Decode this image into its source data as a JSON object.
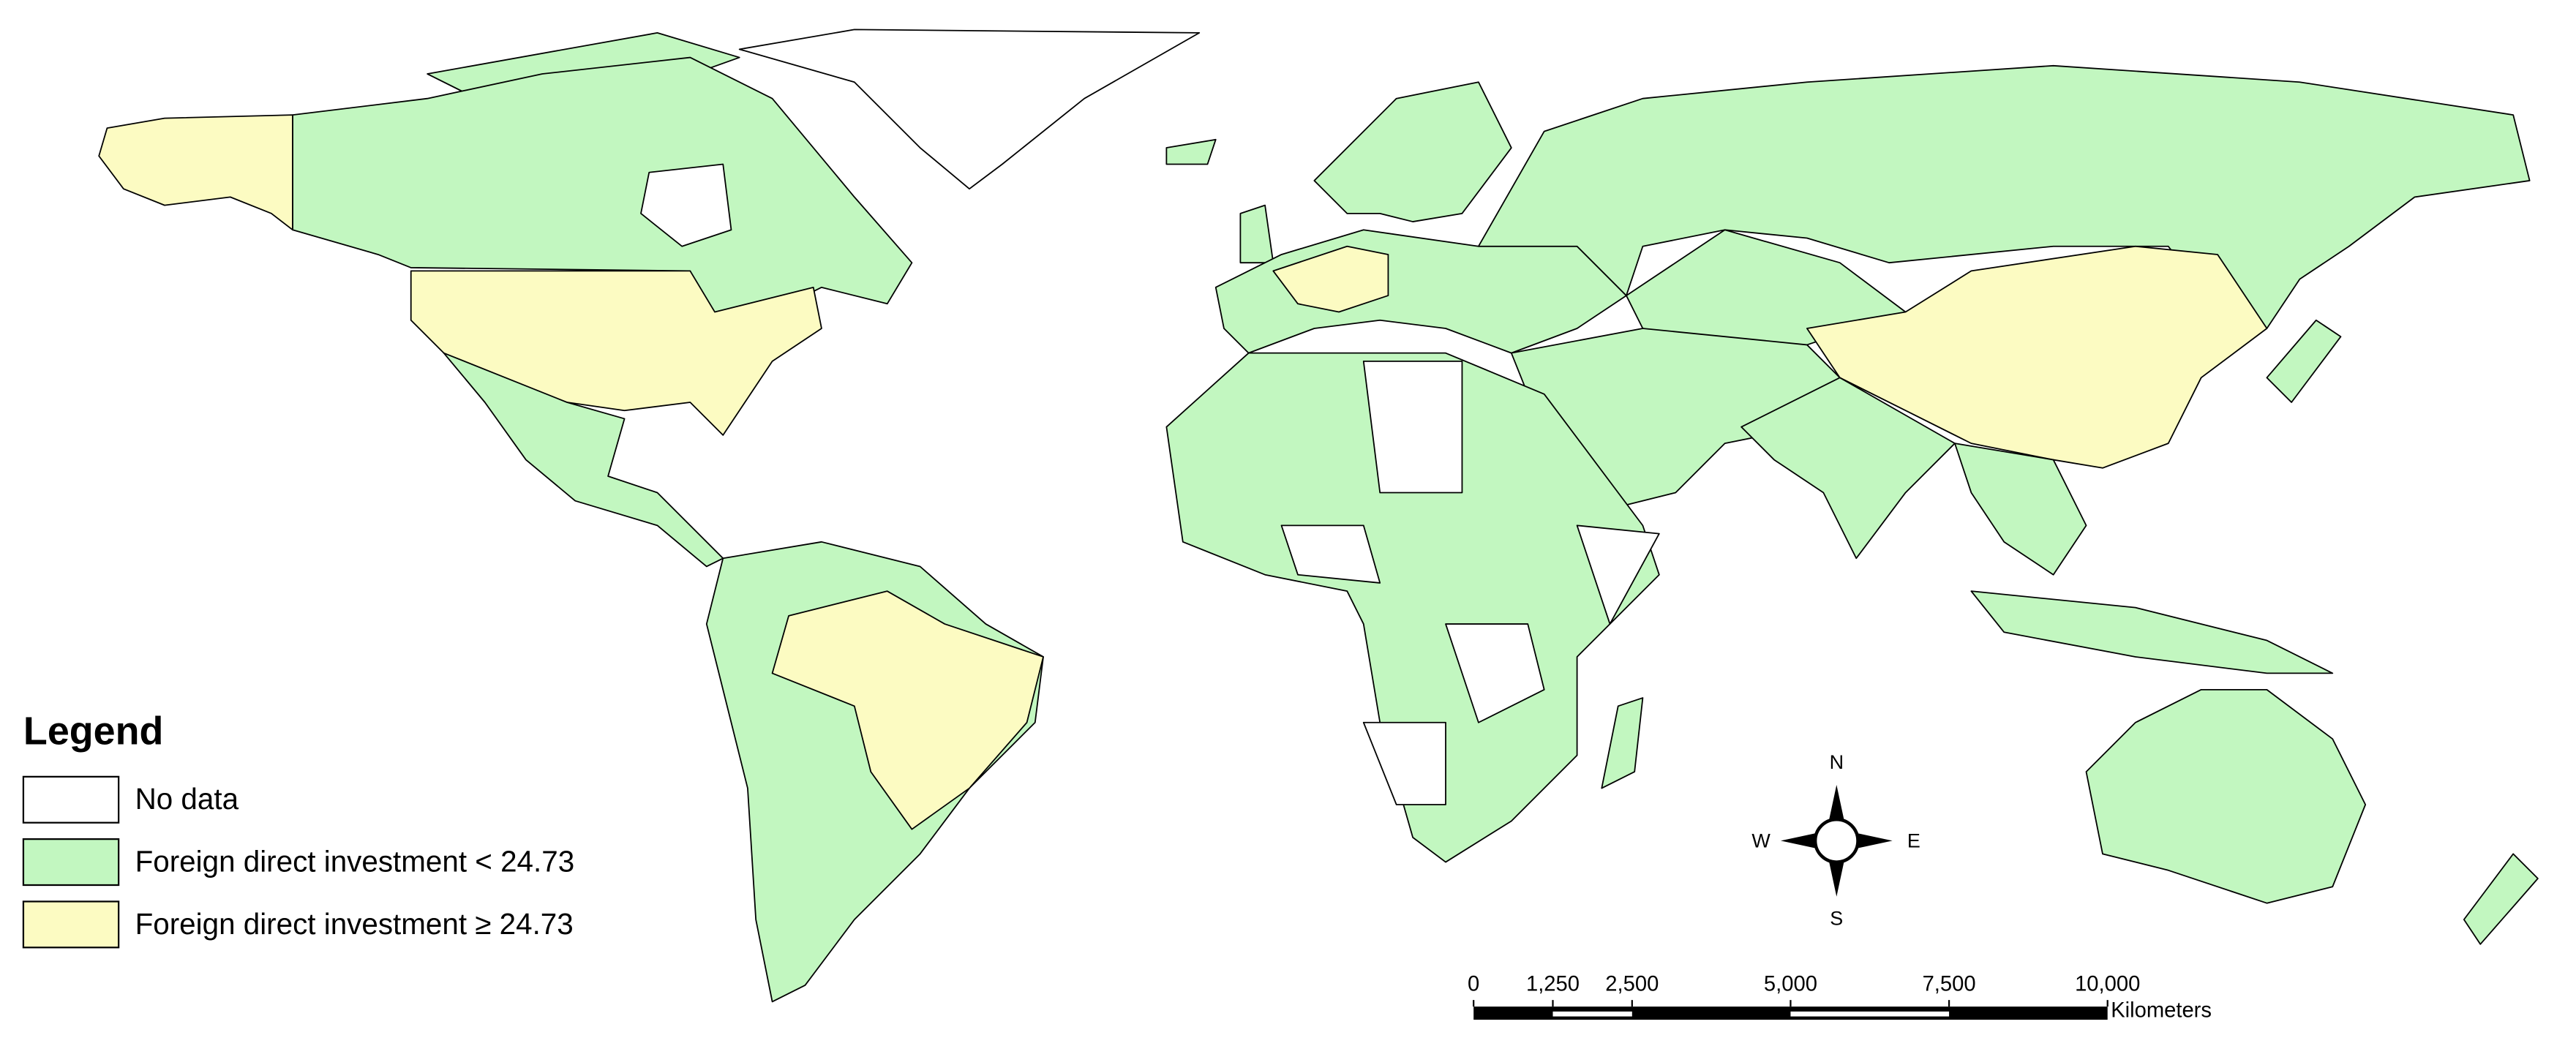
{
  "legend": {
    "title": "Legend",
    "classes": [
      {
        "label": "No data",
        "color": "#ffffff"
      },
      {
        "label": "Foreign direct investment < 24.73",
        "color": "#c2f7c0"
      },
      {
        "label": "Foreign direct investment ≥ 24.73",
        "color": "#fcfbc2"
      }
    ]
  },
  "compass": {
    "north": "N",
    "east": "E",
    "south": "S",
    "west": "W"
  },
  "scale_bar": {
    "unit": "Kilometers",
    "range": [
      0,
      10000
    ],
    "ticks": [
      0,
      {
        "value": 1250,
        "label": "1,250"
      },
      {
        "value": 2500,
        "label": "2,500"
      },
      {
        "value": 5000,
        "label": "5,000"
      },
      {
        "value": 7500,
        "label": "7,500"
      },
      {
        "value": 10000,
        "label": "10,000"
      }
    ]
  }
}
